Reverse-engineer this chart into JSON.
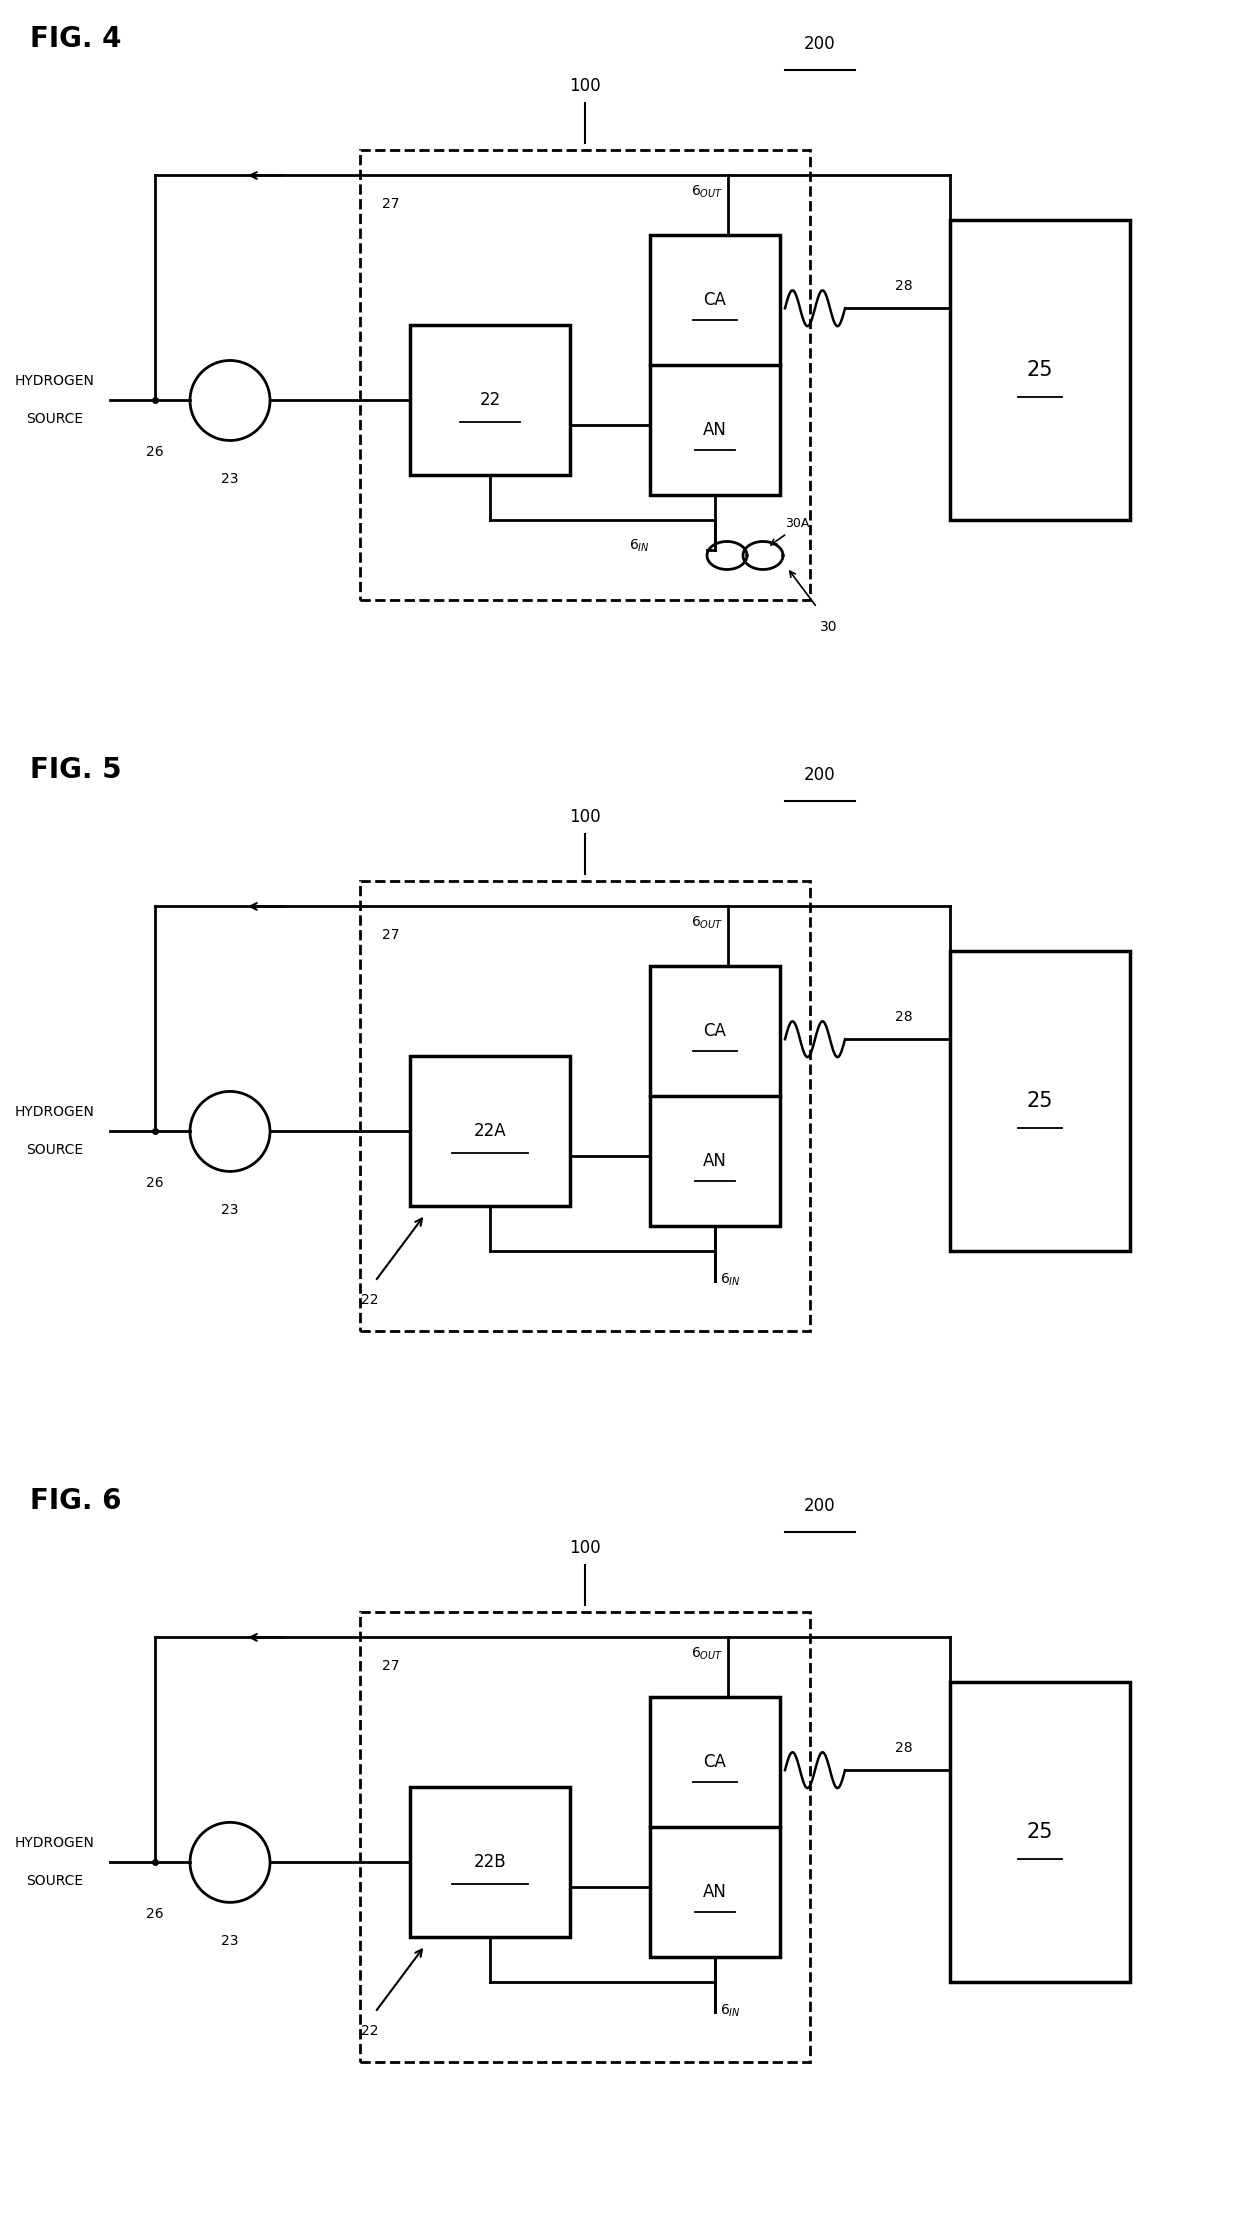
{
  "fig_labels": [
    "FIG. 4",
    "FIG. 5",
    "FIG. 6"
  ],
  "box22_labels": [
    "22",
    "22A",
    "22B"
  ],
  "bg_color": "#ffffff",
  "label_200": "200",
  "label_100": "100",
  "label_27": "27",
  "label_25": "25",
  "label_28": "28",
  "label_CA": "CA",
  "label_AN": "AN",
  "label_26": "26",
  "label_23": "23",
  "label_30": "30",
  "label_30A": "30A",
  "label_22": "22",
  "lw_main": 2.0,
  "lw_thick": 2.5,
  "fs_title": 20,
  "fs_label": 12,
  "fs_small": 10
}
